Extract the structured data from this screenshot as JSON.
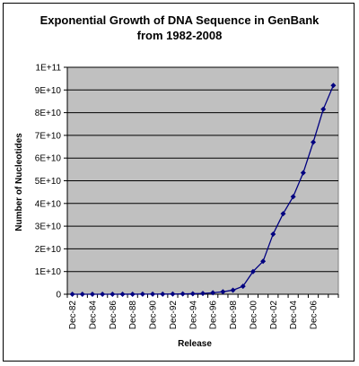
{
  "chart_data": {
    "type": "line",
    "title_lines": [
      "Exponential Growth of DNA Sequence in GenBank",
      "from 1982-2008"
    ],
    "xlabel": "Release",
    "ylabel": "Number of Nucleotides",
    "ylim": [
      0,
      100000000000
    ],
    "y_ticks": [
      {
        "value": 0,
        "label": "0"
      },
      {
        "value": 10000000000,
        "label": "1E+10"
      },
      {
        "value": 20000000000,
        "label": "2E+10"
      },
      {
        "value": 30000000000,
        "label": "3E+10"
      },
      {
        "value": 40000000000,
        "label": "4E+10"
      },
      {
        "value": 50000000000,
        "label": "5E+10"
      },
      {
        "value": 60000000000,
        "label": "6E+10"
      },
      {
        "value": 70000000000,
        "label": "7E+10"
      },
      {
        "value": 80000000000,
        "label": "8E+10"
      },
      {
        "value": 90000000000,
        "label": "9E+10"
      },
      {
        "value": 100000000000,
        "label": "1E+11"
      }
    ],
    "x_tick_labels": [
      "Dec-82",
      "Dec-84",
      "Dec-86",
      "Dec-88",
      "Dec-90",
      "Dec-92",
      "Dec-94",
      "Dec-96",
      "Dec-98",
      "Dec-00",
      "Dec-02",
      "Dec-04",
      "Dec-06"
    ],
    "categories": [
      "Dec-82",
      "Dec-83",
      "Dec-84",
      "Dec-85",
      "Dec-86",
      "Dec-87",
      "Dec-88",
      "Dec-89",
      "Dec-90",
      "Dec-91",
      "Dec-92",
      "Dec-93",
      "Dec-94",
      "Dec-95",
      "Dec-96",
      "Dec-97",
      "Dec-98",
      "Dec-99",
      "Dec-00",
      "Dec-01",
      "Dec-02",
      "Dec-03",
      "Dec-04",
      "Dec-05",
      "Dec-06",
      "Dec-07",
      "Dec-08"
    ],
    "values": [
      680000,
      2270000,
      4000000,
      6000000,
      10000000,
      15000000,
      24000000,
      35000000,
      50000000,
      72000000,
      100000000,
      160000000,
      220000000,
      350000000,
      650000000,
      1100000000,
      1800000000,
      3500000000,
      10000000000,
      14500000000,
      26500000000,
      35500000000,
      43000000000,
      53500000000,
      67000000000,
      81500000000,
      92000000000
    ],
    "grid": true,
    "legend": "none",
    "colors": {
      "plot_background": "#c0c0c0",
      "series": "#000080",
      "gridline": "#000000"
    }
  }
}
